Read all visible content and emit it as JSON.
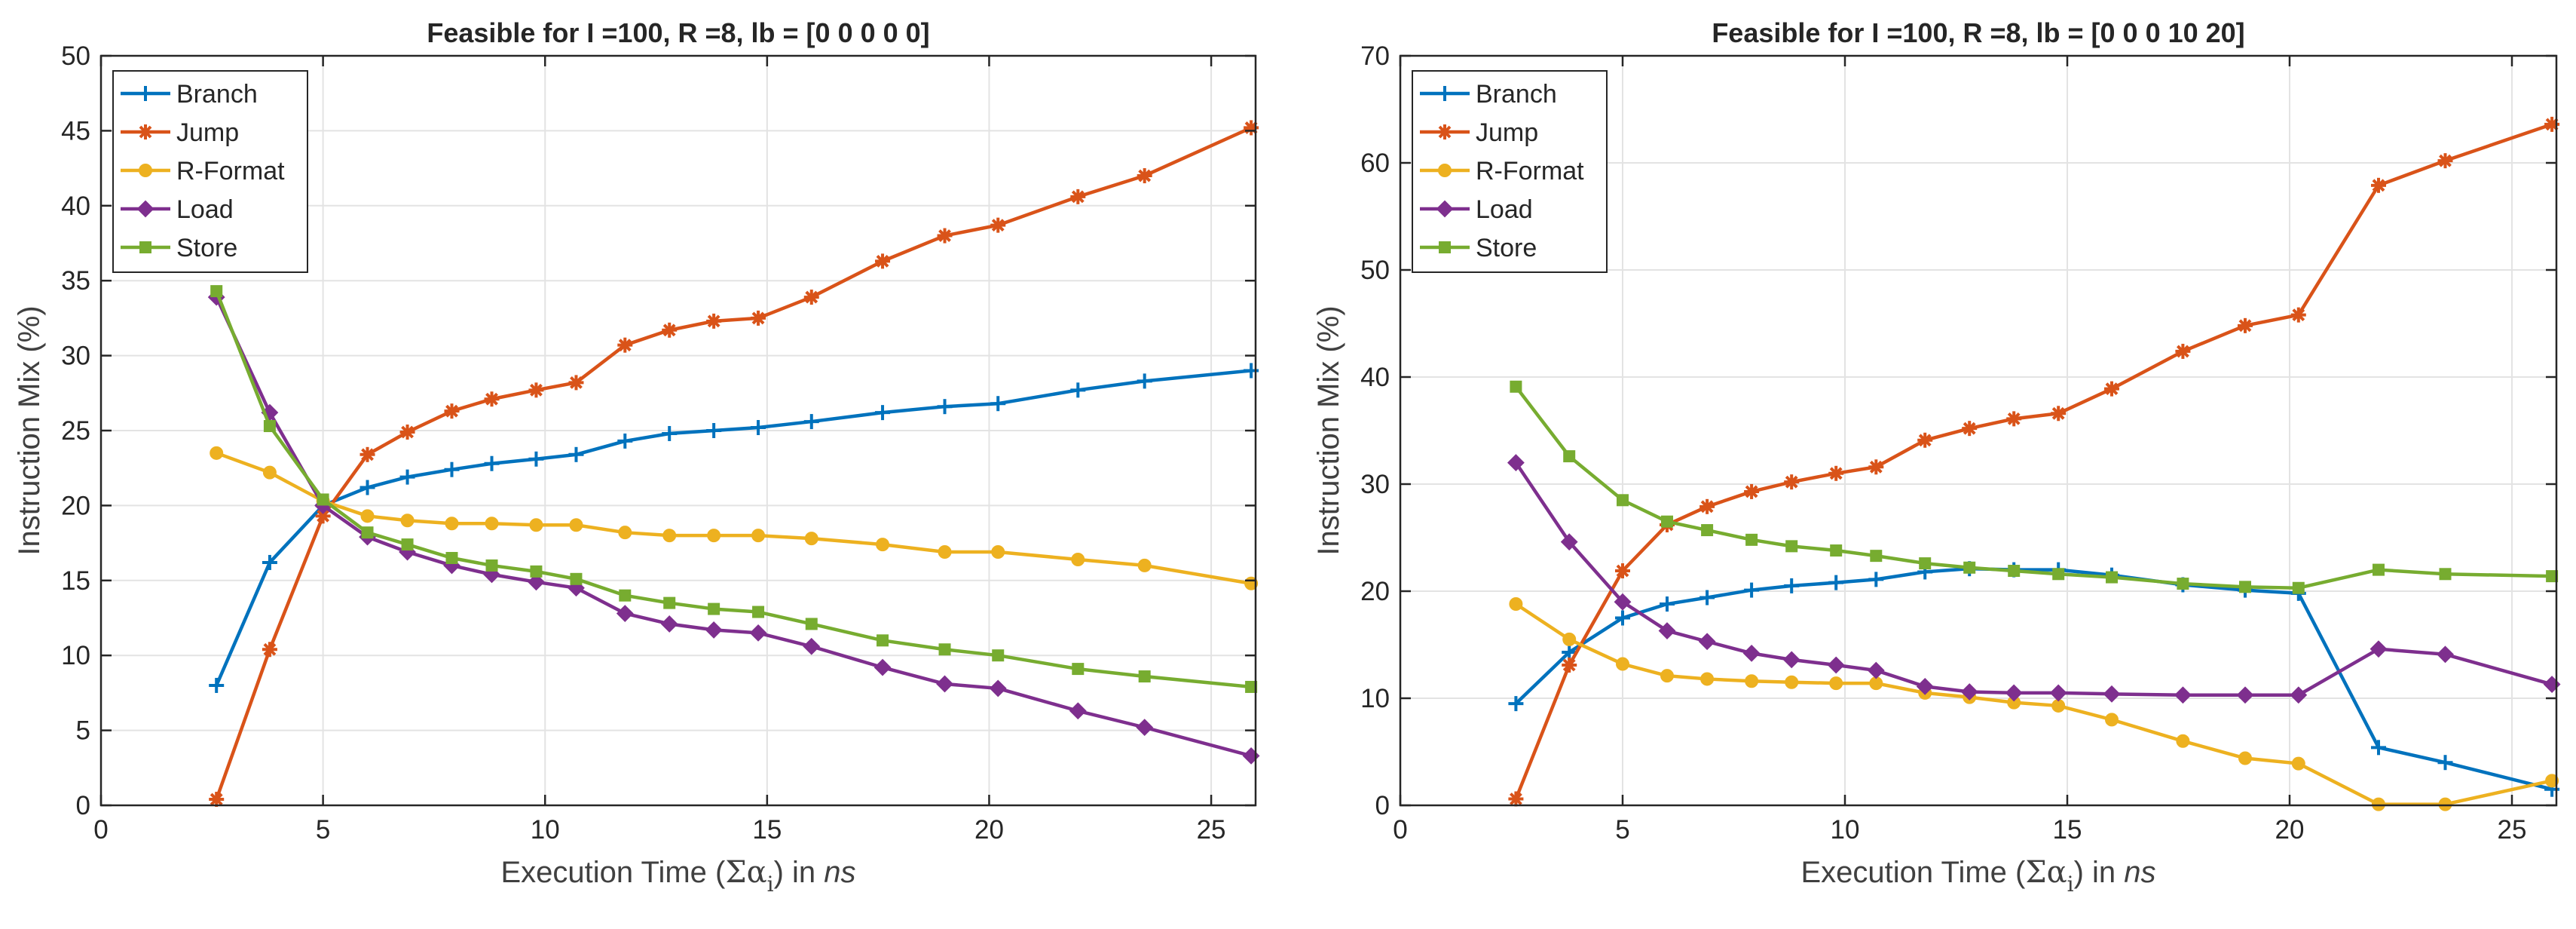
{
  "chart_data": [
    {
      "type": "line",
      "title": "Feasible for I =100, R =8, lb = [0  0  0  0  0]",
      "xlabel": {
        "pre": "Execution Time (",
        "sym": "Σα",
        "sub": "i",
        "mid": ") in ",
        "unit": "ns"
      },
      "ylabel": "Instruction Mix (%)",
      "xlim": [
        0,
        26
      ],
      "ylim": [
        0,
        50
      ],
      "xticks": [
        "0",
        "5",
        "10",
        "15",
        "20",
        "25"
      ],
      "yticks": [
        "0",
        "5",
        "10",
        "15",
        "20",
        "25",
        "30",
        "35",
        "40",
        "45",
        "50"
      ],
      "grid": true,
      "legend_position": "top-left",
      "x": [
        2.6,
        3.8,
        5.0,
        6.0,
        6.9,
        7.9,
        8.8,
        9.8,
        10.7,
        11.8,
        12.8,
        13.8,
        14.8,
        16.0,
        17.6,
        19.0,
        20.2,
        22.0,
        23.5,
        25.9
      ],
      "series": [
        {
          "name": "Branch",
          "color": "#0072BD",
          "marker": "plus",
          "values": [
            8.0,
            16.2,
            20.0,
            21.2,
            21.9,
            22.4,
            22.8,
            23.1,
            23.4,
            24.3,
            24.8,
            25.0,
            25.2,
            25.6,
            26.2,
            26.6,
            26.8,
            27.7,
            28.3,
            29.0
          ]
        },
        {
          "name": "Jump",
          "color": "#D95319",
          "marker": "asterisk",
          "values": [
            0.4,
            10.4,
            19.3,
            23.4,
            24.9,
            26.3,
            27.1,
            27.7,
            28.2,
            30.7,
            31.7,
            32.3,
            32.5,
            33.9,
            36.3,
            38.0,
            38.7,
            40.6,
            42.0,
            45.2
          ]
        },
        {
          "name": "R-Format",
          "color": "#EDB120",
          "marker": "circle",
          "values": [
            23.5,
            22.2,
            20.3,
            19.3,
            19.0,
            18.8,
            18.8,
            18.7,
            18.7,
            18.2,
            18.0,
            18.0,
            18.0,
            17.8,
            17.4,
            16.9,
            16.9,
            16.4,
            16.0,
            14.8
          ]
        },
        {
          "name": "Load",
          "color": "#7E2F8E",
          "marker": "diamond",
          "values": [
            33.9,
            26.2,
            20.0,
            17.9,
            16.9,
            16.0,
            15.4,
            14.9,
            14.5,
            12.8,
            12.1,
            11.7,
            11.5,
            10.6,
            9.2,
            8.1,
            7.8,
            6.3,
            5.2,
            3.3
          ]
        },
        {
          "name": "Store",
          "color": "#77AC30",
          "marker": "square",
          "values": [
            34.3,
            25.3,
            20.4,
            18.2,
            17.4,
            16.5,
            16.0,
            15.6,
            15.1,
            14.0,
            13.5,
            13.1,
            12.9,
            12.1,
            11.0,
            10.4,
            10.0,
            9.1,
            8.6,
            7.9
          ]
        }
      ]
    },
    {
      "type": "line",
      "title": "Feasible for I =100, R =8, lb = [0   0   0  10  20]",
      "xlabel": {
        "pre": "Execution Time (",
        "sym": "Σα",
        "sub": "i",
        "mid": ") in ",
        "unit": "ns"
      },
      "ylabel": "Instruction Mix (%)",
      "xlim": [
        0,
        26
      ],
      "ylim": [
        0,
        70
      ],
      "xticks": [
        "0",
        "5",
        "10",
        "15",
        "20",
        "25"
      ],
      "yticks": [
        "0",
        "10",
        "20",
        "30",
        "40",
        "50",
        "60",
        "70"
      ],
      "grid": true,
      "legend_position": "top-left",
      "x": [
        2.6,
        3.8,
        5.0,
        6.0,
        6.9,
        7.9,
        8.8,
        9.8,
        10.7,
        11.8,
        12.8,
        13.8,
        14.8,
        16.0,
        17.6,
        19.0,
        20.2,
        22.0,
        23.5,
        25.9
      ],
      "series": [
        {
          "name": "Branch",
          "color": "#0072BD",
          "marker": "plus",
          "values": [
            9.5,
            14.3,
            17.5,
            18.8,
            19.4,
            20.1,
            20.5,
            20.8,
            21.1,
            21.8,
            22.1,
            22.0,
            22.0,
            21.5,
            20.6,
            20.1,
            19.8,
            5.4,
            4.0,
            1.5
          ]
        },
        {
          "name": "Jump",
          "color": "#D95319",
          "marker": "asterisk",
          "values": [
            0.6,
            13.1,
            21.9,
            26.2,
            27.9,
            29.3,
            30.2,
            31.0,
            31.6,
            34.1,
            35.2,
            36.1,
            36.6,
            38.9,
            42.4,
            44.8,
            45.8,
            57.9,
            60.2,
            63.6
          ]
        },
        {
          "name": "R-Format",
          "color": "#EDB120",
          "marker": "circle",
          "values": [
            18.8,
            15.5,
            13.2,
            12.1,
            11.8,
            11.6,
            11.5,
            11.4,
            11.4,
            10.5,
            10.1,
            9.6,
            9.3,
            8.0,
            6.0,
            4.4,
            3.9,
            0.1,
            0.1,
            2.3
          ]
        },
        {
          "name": "Load",
          "color": "#7E2F8E",
          "marker": "diamond",
          "values": [
            32.0,
            24.6,
            19.0,
            16.3,
            15.3,
            14.2,
            13.6,
            13.1,
            12.6,
            11.1,
            10.6,
            10.5,
            10.5,
            10.4,
            10.3,
            10.3,
            10.3,
            14.6,
            14.1,
            11.3
          ]
        },
        {
          "name": "Store",
          "color": "#77AC30",
          "marker": "square",
          "values": [
            39.1,
            32.6,
            28.5,
            26.5,
            25.7,
            24.8,
            24.2,
            23.8,
            23.3,
            22.6,
            22.2,
            21.9,
            21.6,
            21.3,
            20.7,
            20.4,
            20.3,
            22.0,
            21.6,
            21.4
          ]
        }
      ]
    }
  ]
}
